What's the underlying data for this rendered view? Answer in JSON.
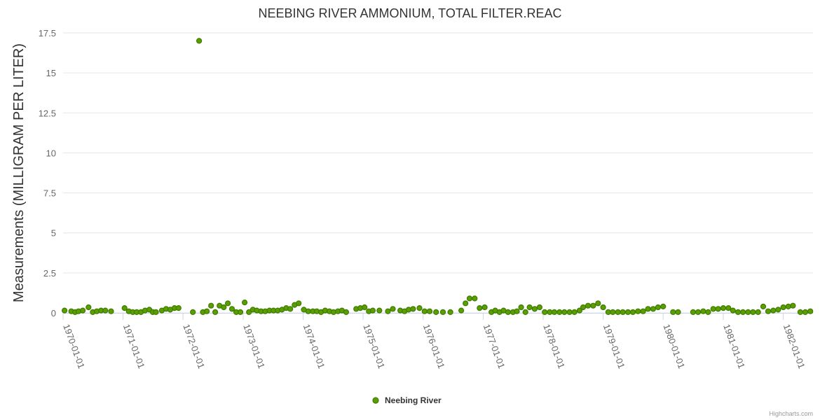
{
  "chart_data": {
    "type": "scatter",
    "title": "NEEBING RIVER AMMONIUM, TOTAL FILTER.REAC",
    "ylabel": "Measurements (MILLIGRAM PER LITER)",
    "xlabel": "",
    "ylim": [
      0,
      17.5
    ],
    "xlim": [
      "1970-01-01",
      "1982-07-01"
    ],
    "y_ticks": [
      "0",
      "2.5",
      "5",
      "7.5",
      "10",
      "12.5",
      "15",
      "17.5"
    ],
    "x_ticks": [
      "1970-01-01",
      "1971-01-01",
      "1972-01-01",
      "1973-01-01",
      "1974-01-01",
      "1975-01-01",
      "1976-01-01",
      "1977-01-01",
      "1978-01-01",
      "1979-01-01",
      "1980-01-01",
      "1981-01-01",
      "1982-01-01"
    ],
    "grid": true,
    "legend_position": "bottom-center",
    "series": [
      {
        "name": "Neebing River",
        "color": "#5a9f00",
        "edge_color": "#3f7a00",
        "points": [
          [
            "1970-01-10",
            0.15
          ],
          [
            "1970-02-20",
            0.1
          ],
          [
            "1970-03-15",
            0.05
          ],
          [
            "1970-04-05",
            0.1
          ],
          [
            "1970-05-01",
            0.15
          ],
          [
            "1970-06-05",
            0.35
          ],
          [
            "1970-07-01",
            0.05
          ],
          [
            "1970-07-25",
            0.1
          ],
          [
            "1970-08-20",
            0.15
          ],
          [
            "1970-09-15",
            0.15
          ],
          [
            "1970-10-20",
            0.1
          ],
          [
            "1971-01-10",
            0.3
          ],
          [
            "1971-02-05",
            0.1
          ],
          [
            "1971-03-01",
            0.05
          ],
          [
            "1971-03-25",
            0.05
          ],
          [
            "1971-04-20",
            0.05
          ],
          [
            "1971-05-15",
            0.15
          ],
          [
            "1971-06-10",
            0.2
          ],
          [
            "1971-07-01",
            0.05
          ],
          [
            "1971-07-20",
            0.05
          ],
          [
            "1971-08-25",
            0.15
          ],
          [
            "1971-09-20",
            0.25
          ],
          [
            "1971-10-15",
            0.2
          ],
          [
            "1971-11-10",
            0.3
          ],
          [
            "1971-12-05",
            0.3
          ],
          [
            "1972-03-01",
            0.05
          ],
          [
            "1972-04-08",
            17.0
          ],
          [
            "1972-05-01",
            0.05
          ],
          [
            "1972-05-25",
            0.1
          ],
          [
            "1972-06-20",
            0.45
          ],
          [
            "1972-07-15",
            0.05
          ],
          [
            "1972-08-10",
            0.45
          ],
          [
            "1972-09-05",
            0.35
          ],
          [
            "1972-09-30",
            0.6
          ],
          [
            "1972-10-25",
            0.25
          ],
          [
            "1972-11-20",
            0.05
          ],
          [
            "1972-12-15",
            0.05
          ],
          [
            "1973-01-10",
            0.65
          ],
          [
            "1973-02-05",
            0.05
          ],
          [
            "1973-03-01",
            0.2
          ],
          [
            "1973-03-25",
            0.15
          ],
          [
            "1973-04-20",
            0.1
          ],
          [
            "1973-05-15",
            0.1
          ],
          [
            "1973-06-10",
            0.15
          ],
          [
            "1973-07-05",
            0.15
          ],
          [
            "1973-07-30",
            0.15
          ],
          [
            "1973-08-25",
            0.2
          ],
          [
            "1973-09-20",
            0.3
          ],
          [
            "1973-10-15",
            0.25
          ],
          [
            "1973-11-10",
            0.5
          ],
          [
            "1973-12-05",
            0.6
          ],
          [
            "1974-01-05",
            0.2
          ],
          [
            "1974-02-01",
            0.1
          ],
          [
            "1974-03-01",
            0.1
          ],
          [
            "1974-03-25",
            0.1
          ],
          [
            "1974-04-20",
            0.05
          ],
          [
            "1974-05-15",
            0.15
          ],
          [
            "1974-06-10",
            0.1
          ],
          [
            "1974-07-05",
            0.05
          ],
          [
            "1974-08-01",
            0.1
          ],
          [
            "1974-08-25",
            0.15
          ],
          [
            "1974-09-20",
            0.05
          ],
          [
            "1974-11-20",
            0.25
          ],
          [
            "1974-12-15",
            0.3
          ],
          [
            "1975-01-10",
            0.35
          ],
          [
            "1975-02-05",
            0.1
          ],
          [
            "1975-03-01",
            0.15
          ],
          [
            "1975-04-10",
            0.15
          ],
          [
            "1975-06-01",
            0.1
          ],
          [
            "1975-07-01",
            0.25
          ],
          [
            "1975-08-15",
            0.15
          ],
          [
            "1975-09-10",
            0.1
          ],
          [
            "1975-10-05",
            0.2
          ],
          [
            "1975-11-01",
            0.25
          ],
          [
            "1975-12-10",
            0.3
          ],
          [
            "1976-01-10",
            0.1
          ],
          [
            "1976-02-10",
            0.1
          ],
          [
            "1976-03-20",
            0.05
          ],
          [
            "1976-05-01",
            0.05
          ],
          [
            "1976-06-15",
            0.05
          ],
          [
            "1976-08-20",
            0.15
          ],
          [
            "1976-09-15",
            0.6
          ],
          [
            "1976-10-10",
            0.9
          ],
          [
            "1976-11-10",
            0.9
          ],
          [
            "1976-12-10",
            0.3
          ],
          [
            "1977-01-10",
            0.35
          ],
          [
            "1977-02-20",
            0.05
          ],
          [
            "1977-03-15",
            0.15
          ],
          [
            "1977-04-10",
            0.05
          ],
          [
            "1977-05-05",
            0.15
          ],
          [
            "1977-06-01",
            0.05
          ],
          [
            "1977-07-01",
            0.05
          ],
          [
            "1977-07-25",
            0.1
          ],
          [
            "1977-08-20",
            0.35
          ],
          [
            "1977-09-15",
            0.05
          ],
          [
            "1977-10-10",
            0.35
          ],
          [
            "1977-11-10",
            0.25
          ],
          [
            "1977-12-10",
            0.35
          ],
          [
            "1978-01-10",
            0.05
          ],
          [
            "1978-02-10",
            0.05
          ],
          [
            "1978-03-10",
            0.05
          ],
          [
            "1978-04-10",
            0.05
          ],
          [
            "1978-05-10",
            0.05
          ],
          [
            "1978-06-10",
            0.05
          ],
          [
            "1978-07-10",
            0.05
          ],
          [
            "1978-08-10",
            0.15
          ],
          [
            "1978-09-01",
            0.35
          ],
          [
            "1978-10-01",
            0.45
          ],
          [
            "1978-11-01",
            0.45
          ],
          [
            "1978-12-01",
            0.6
          ],
          [
            "1979-01-01",
            0.35
          ],
          [
            "1979-02-01",
            0.05
          ],
          [
            "1979-03-01",
            0.05
          ],
          [
            "1979-04-01",
            0.05
          ],
          [
            "1979-05-01",
            0.05
          ],
          [
            "1979-06-01",
            0.05
          ],
          [
            "1979-07-01",
            0.05
          ],
          [
            "1979-08-01",
            0.1
          ],
          [
            "1979-09-01",
            0.1
          ],
          [
            "1979-10-01",
            0.25
          ],
          [
            "1979-11-01",
            0.25
          ],
          [
            "1979-12-01",
            0.35
          ],
          [
            "1980-01-01",
            0.4
          ],
          [
            "1980-03-01",
            0.05
          ],
          [
            "1980-04-01",
            0.05
          ],
          [
            "1980-07-01",
            0.05
          ],
          [
            "1980-08-01",
            0.05
          ],
          [
            "1980-09-01",
            0.1
          ],
          [
            "1980-10-01",
            0.05
          ],
          [
            "1980-11-01",
            0.25
          ],
          [
            "1980-12-01",
            0.25
          ],
          [
            "1981-01-01",
            0.3
          ],
          [
            "1981-02-01",
            0.3
          ],
          [
            "1981-03-01",
            0.15
          ],
          [
            "1981-04-01",
            0.05
          ],
          [
            "1981-05-01",
            0.05
          ],
          [
            "1981-06-01",
            0.05
          ],
          [
            "1981-07-01",
            0.05
          ],
          [
            "1981-08-01",
            0.05
          ],
          [
            "1981-09-01",
            0.4
          ],
          [
            "1981-10-01",
            0.1
          ],
          [
            "1981-11-01",
            0.15
          ],
          [
            "1981-12-01",
            0.2
          ],
          [
            "1982-01-01",
            0.35
          ],
          [
            "1982-02-01",
            0.4
          ],
          [
            "1982-03-01",
            0.45
          ],
          [
            "1982-04-15",
            0.05
          ],
          [
            "1982-05-15",
            0.05
          ],
          [
            "1982-06-15",
            0.1
          ]
        ]
      }
    ]
  },
  "credits": "Highcharts.com"
}
